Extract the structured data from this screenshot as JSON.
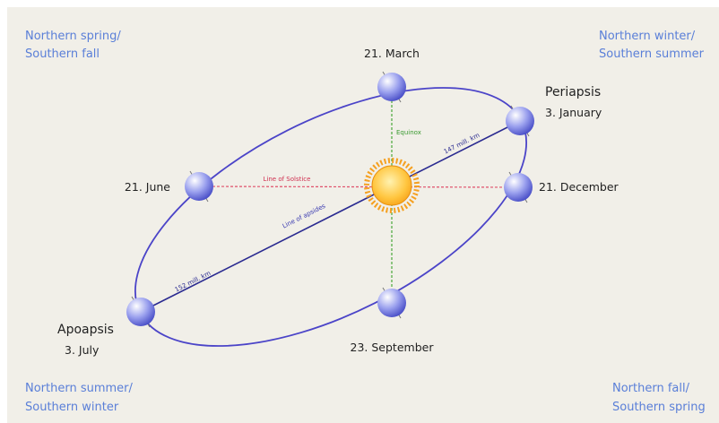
{
  "corners": [
    {
      "lines": [
        "Northern spring/",
        "Southern fall"
      ]
    },
    {
      "lines": [
        "Northern winter/",
        "Southern summer"
      ]
    },
    {
      "lines": [
        "Northern summer/",
        "Southern winter"
      ]
    },
    {
      "lines": [
        "Northern fall/",
        "Southern spring"
      ]
    }
  ],
  "positions": {
    "march": "21. March",
    "june": "21. June",
    "december": "21. December",
    "september": "23. September"
  },
  "periapsis": {
    "title": "Periapsis",
    "date": "3. January"
  },
  "apoapsis": {
    "title": "Apoapsis",
    "date": "3. July"
  },
  "lines": {
    "solstice": "Line of Solstice",
    "equinox": "Equinox",
    "apsides": "Line of apsides"
  },
  "distances": {
    "periapsis": "147 mill. km",
    "apoapsis": "152 mill. km"
  }
}
